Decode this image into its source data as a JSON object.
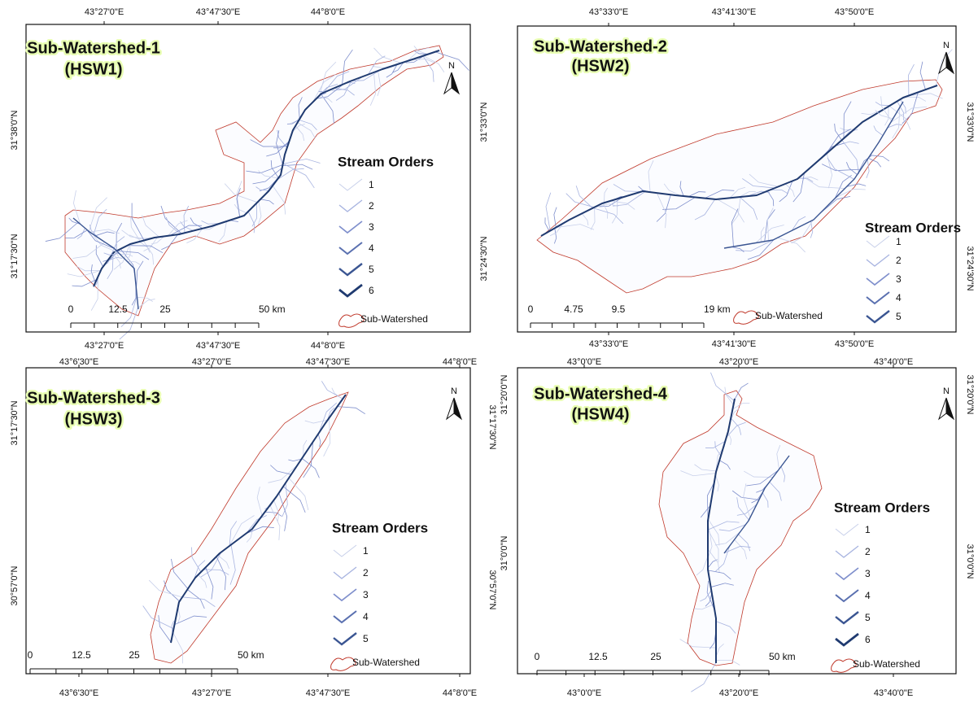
{
  "panels": [
    {
      "title": "Sub-Watershed-1",
      "subtitle": "(HSW1)",
      "north": "N",
      "top_ticks": [
        "43°27'0\"E",
        "43°47'30\"E",
        "44°8'0\"E"
      ],
      "bottom_ticks": [
        "43°27'0\"E",
        "43°47'30\"E",
        "44°8'0\"E"
      ],
      "left_ticks": [
        "31°38'0\"N",
        "31°17'30\"N"
      ],
      "legend": {
        "title": "Stream Orders",
        "items": [
          "1",
          "2",
          "3",
          "4",
          "5",
          "6"
        ],
        "boundary": "Sub-Watershed"
      },
      "scale": [
        "0",
        "12.5",
        "25",
        "50 km"
      ]
    },
    {
      "title": "Sub-Watershed-2",
      "subtitle": "(HSW2)",
      "north": "N",
      "top_ticks": [
        "43°33'0\"E",
        "43°41'30\"E",
        "43°50'0\"E"
      ],
      "bottom_ticks": [
        "43°33'0\"E",
        "43°41'30\"E",
        "43°50'0\"E"
      ],
      "left_ticks": [
        "31°33'0\"N",
        "31°24'30\"N"
      ],
      "right_ticks": [
        "31°33'0\"N",
        "31°24'30\"N"
      ],
      "legend": {
        "title": "Stream Orders",
        "items": [
          "1",
          "2",
          "3",
          "4",
          "5"
        ],
        "boundary": "Sub-Watershed"
      },
      "scale": [
        "0",
        "4.75",
        "9.5",
        "19 km"
      ]
    },
    {
      "title": "Sub-Watershed-3",
      "subtitle": "(HSW3)",
      "north": "N",
      "top_ticks": [
        "43°6'30\"E",
        "43°27'0\"E",
        "43°47'30\"E",
        "44°8'0\"E"
      ],
      "bottom_ticks": [
        "43°6'30\"E",
        "43°27'0\"E",
        "43°47'30\"E",
        "44°8'0\"E"
      ],
      "left_ticks": [
        "31°17'30\"N",
        "30°57'0\"N"
      ],
      "right_ticks": [
        "31°17'30\"N",
        "30°57'0\"N"
      ],
      "legend": {
        "title": "Stream Orders",
        "items": [
          "1",
          "2",
          "3",
          "4",
          "5"
        ],
        "boundary": "Sub-Watershed"
      },
      "scale": [
        "0",
        "12.5",
        "25",
        "50 km"
      ]
    },
    {
      "title": "Sub-Watershed-4",
      "subtitle": "(HSW4)",
      "north": "N",
      "top_ticks": [
        "43°0'0\"E",
        "43°20'0\"E",
        "43°40'0\"E"
      ],
      "bottom_ticks": [
        "43°0'0\"E",
        "43°20'0\"E",
        "43°40'0\"E"
      ],
      "left_ticks": [
        "31°20'0\"N",
        "31°0'0\"N"
      ],
      "right_ticks": [
        "31°20'0\"N",
        "31°0'0\"N"
      ],
      "legend": {
        "title": "Stream Orders",
        "items": [
          "1",
          "2",
          "3",
          "4",
          "5",
          "6"
        ],
        "boundary": "Sub-Watershed"
      },
      "scale": [
        "0",
        "12.5",
        "25",
        "50 km"
      ]
    }
  ]
}
